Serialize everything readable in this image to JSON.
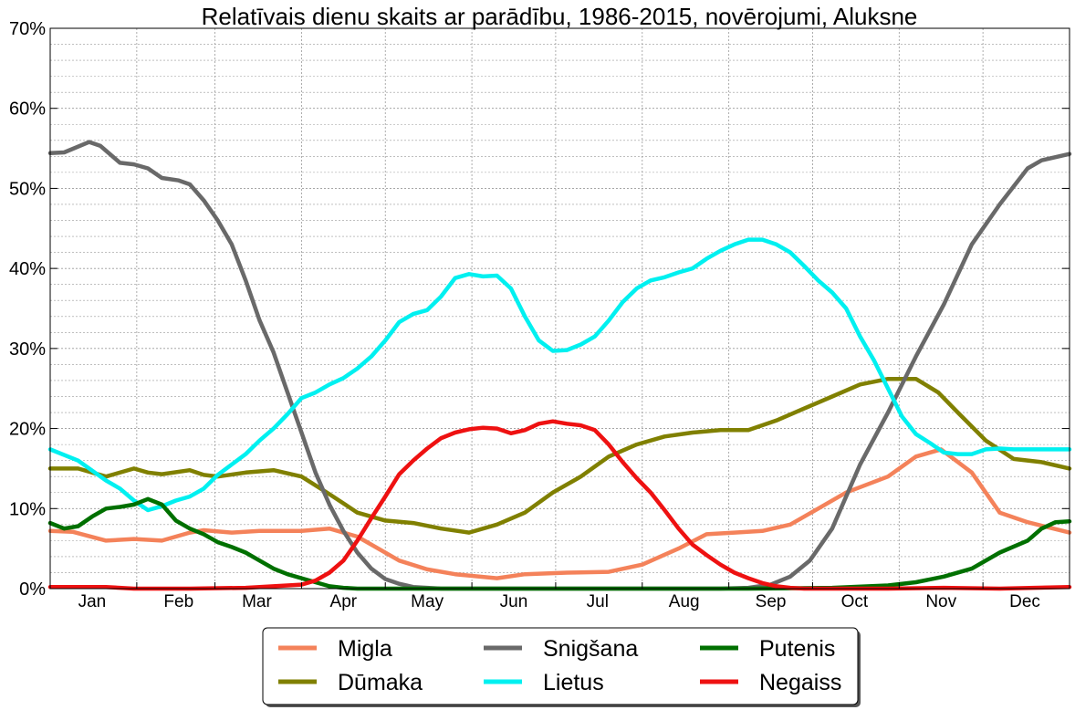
{
  "chart_data": {
    "type": "line",
    "title": "Relatīvais dienu skaits ar parādību, 1986-2015, novērojumi, Aluksne",
    "xlabel": "",
    "ylabel": "",
    "x_range": [
      0,
      365
    ],
    "ylim": [
      0,
      70
    ],
    "y_ticks": [
      0,
      10,
      20,
      30,
      40,
      50,
      60,
      70
    ],
    "y_tick_labels": [
      "0%",
      "10%",
      "20%",
      "30%",
      "40%",
      "50%",
      "60%",
      "70%"
    ],
    "x_tick_labels": [
      "Jan",
      "Feb",
      "Mar",
      "Apr",
      "May",
      "Jun",
      "Jul",
      "Aug",
      "Sep",
      "Oct",
      "Nov",
      "Dec"
    ],
    "x_tick_positions": [
      15,
      46,
      74,
      105,
      135,
      166,
      196,
      227,
      258,
      288,
      319,
      349
    ],
    "month_boundaries": [
      0,
      31,
      59,
      90,
      120,
      151,
      181,
      212,
      243,
      273,
      304,
      334,
      365
    ],
    "grid": true,
    "legend_position": "bottom-center",
    "legend_columns": 3,
    "series": [
      {
        "name": "Migla",
        "color": "#f4825a",
        "x": [
          0,
          8,
          20,
          30,
          40,
          50,
          55,
          65,
          75,
          85,
          90,
          100,
          110,
          125,
          135,
          145,
          160,
          170,
          185,
          200,
          212,
          225,
          235,
          245,
          255,
          265,
          275,
          285,
          300,
          310,
          319,
          330,
          340,
          350,
          365
        ],
        "y": [
          7.2,
          7.1,
          6.0,
          6.2,
          6.0,
          7.0,
          7.3,
          7.0,
          7.2,
          7.2,
          7.2,
          7.5,
          6.5,
          3.5,
          2.4,
          1.8,
          1.3,
          1.8,
          2.0,
          2.1,
          3.0,
          5.0,
          6.8,
          7.0,
          7.2,
          8.0,
          10.0,
          12.0,
          14.0,
          16.5,
          17.4,
          14.5,
          9.5,
          8.3,
          7.0
        ]
      },
      {
        "name": "Dūmaka",
        "color": "#808000",
        "x": [
          0,
          10,
          20,
          30,
          35,
          40,
          50,
          55,
          60,
          70,
          80,
          90,
          100,
          110,
          120,
          130,
          140,
          150,
          160,
          170,
          180,
          190,
          200,
          210,
          220,
          230,
          240,
          250,
          260,
          270,
          280,
          290,
          300,
          310,
          318,
          325,
          335,
          345,
          355,
          365
        ],
        "y": [
          15.0,
          15.0,
          14.0,
          15.0,
          14.5,
          14.3,
          14.8,
          14.2,
          14.0,
          14.5,
          14.8,
          14.0,
          11.8,
          9.5,
          8.5,
          8.2,
          7.5,
          7.0,
          8.0,
          9.5,
          12.0,
          14.0,
          16.5,
          18.0,
          19.0,
          19.5,
          19.8,
          19.8,
          21.0,
          22.5,
          24.0,
          25.5,
          26.2,
          26.2,
          24.5,
          22.0,
          18.5,
          16.2,
          15.8,
          15.0
        ]
      },
      {
        "name": "Snigšana",
        "color": "#696969",
        "x": [
          0,
          5,
          14,
          18,
          25,
          30,
          35,
          40,
          46,
          50,
          55,
          60,
          65,
          70,
          75,
          80,
          85,
          90,
          95,
          100,
          105,
          110,
          115,
          120,
          125,
          130,
          140,
          150,
          160,
          170,
          180,
          200,
          220,
          240,
          250,
          258,
          265,
          272,
          280,
          290,
          300,
          310,
          320,
          330,
          340,
          350,
          355,
          365
        ],
        "y": [
          54.4,
          54.5,
          55.8,
          55.3,
          53.2,
          53.0,
          52.5,
          51.3,
          51.0,
          50.5,
          48.5,
          46.0,
          43.0,
          38.5,
          33.5,
          29.5,
          24.5,
          19.5,
          14.5,
          10.5,
          7.2,
          4.5,
          2.5,
          1.2,
          0.6,
          0.2,
          0.0,
          0.0,
          0.0,
          0.0,
          0.0,
          0.0,
          0.0,
          0.0,
          0.1,
          0.5,
          1.5,
          3.5,
          7.5,
          15.5,
          22.0,
          29.0,
          35.5,
          43.0,
          48.0,
          52.5,
          53.5,
          54.3
        ]
      },
      {
        "name": "Lietus",
        "color": "#00f0f0",
        "x": [
          0,
          10,
          20,
          25,
          30,
          35,
          40,
          45,
          50,
          55,
          60,
          65,
          70,
          75,
          80,
          85,
          90,
          95,
          100,
          105,
          110,
          115,
          120,
          125,
          130,
          135,
          140,
          145,
          150,
          155,
          160,
          165,
          170,
          175,
          180,
          185,
          190,
          195,
          200,
          205,
          210,
          215,
          220,
          225,
          230,
          235,
          240,
          245,
          250,
          255,
          260,
          265,
          270,
          275,
          280,
          285,
          290,
          295,
          300,
          305,
          310,
          315,
          320,
          325,
          330,
          335,
          340,
          345,
          350,
          355,
          360,
          365
        ],
        "y": [
          17.4,
          16.0,
          13.5,
          12.5,
          11.0,
          9.8,
          10.3,
          11.0,
          11.5,
          12.5,
          14.2,
          15.5,
          16.8,
          18.5,
          20.0,
          21.8,
          23.8,
          24.5,
          25.5,
          26.3,
          27.5,
          29.0,
          31.0,
          33.3,
          34.3,
          34.8,
          36.5,
          38.8,
          39.3,
          39.0,
          39.1,
          37.5,
          34.0,
          31.0,
          29.7,
          29.8,
          30.5,
          31.5,
          33.5,
          35.8,
          37.5,
          38.5,
          38.9,
          39.5,
          40.0,
          41.2,
          42.2,
          43.0,
          43.6,
          43.6,
          43.0,
          42.0,
          40.3,
          38.5,
          37.0,
          35.0,
          31.5,
          28.5,
          25.0,
          21.5,
          19.3,
          18.2,
          17.0,
          16.8,
          16.8,
          17.4,
          17.5,
          17.4,
          17.4,
          17.4,
          17.4,
          17.4
        ]
      },
      {
        "name": "Putenis",
        "color": "#007000",
        "x": [
          0,
          5,
          10,
          15,
          20,
          25,
          30,
          35,
          40,
          45,
          50,
          55,
          60,
          65,
          70,
          75,
          80,
          85,
          90,
          95,
          100,
          105,
          110,
          120,
          150,
          200,
          250,
          280,
          300,
          310,
          320,
          330,
          340,
          350,
          355,
          360,
          365
        ],
        "y": [
          8.2,
          7.5,
          7.8,
          9.0,
          10.0,
          10.2,
          10.5,
          11.2,
          10.5,
          8.5,
          7.5,
          6.8,
          5.8,
          5.2,
          4.5,
          3.5,
          2.5,
          1.8,
          1.3,
          0.8,
          0.3,
          0.1,
          0.0,
          0.0,
          0.0,
          0.0,
          0.0,
          0.1,
          0.4,
          0.8,
          1.5,
          2.5,
          4.5,
          6.0,
          7.5,
          8.3,
          8.4
        ]
      },
      {
        "name": "Negaiss",
        "color": "#ee1111",
        "x": [
          0,
          20,
          30,
          50,
          70,
          80,
          90,
          95,
          100,
          105,
          110,
          115,
          120,
          125,
          130,
          135,
          140,
          145,
          150,
          155,
          160,
          165,
          170,
          175,
          180,
          185,
          190,
          195,
          200,
          205,
          210,
          215,
          220,
          225,
          230,
          235,
          240,
          245,
          250,
          255,
          260,
          265,
          270,
          280,
          290,
          300,
          320,
          340,
          365
        ],
        "y": [
          0.2,
          0.2,
          0.0,
          0.0,
          0.1,
          0.3,
          0.5,
          1.0,
          2.0,
          3.5,
          6.0,
          8.8,
          11.5,
          14.3,
          16.0,
          17.5,
          18.8,
          19.5,
          19.9,
          20.1,
          20.0,
          19.4,
          19.8,
          20.6,
          20.9,
          20.6,
          20.4,
          19.8,
          18.0,
          15.8,
          13.8,
          12.0,
          9.8,
          7.5,
          5.5,
          4.2,
          3.0,
          2.0,
          1.3,
          0.7,
          0.3,
          0.1,
          0.0,
          0.0,
          0.0,
          0.0,
          0.1,
          0.0,
          0.2
        ]
      }
    ]
  }
}
